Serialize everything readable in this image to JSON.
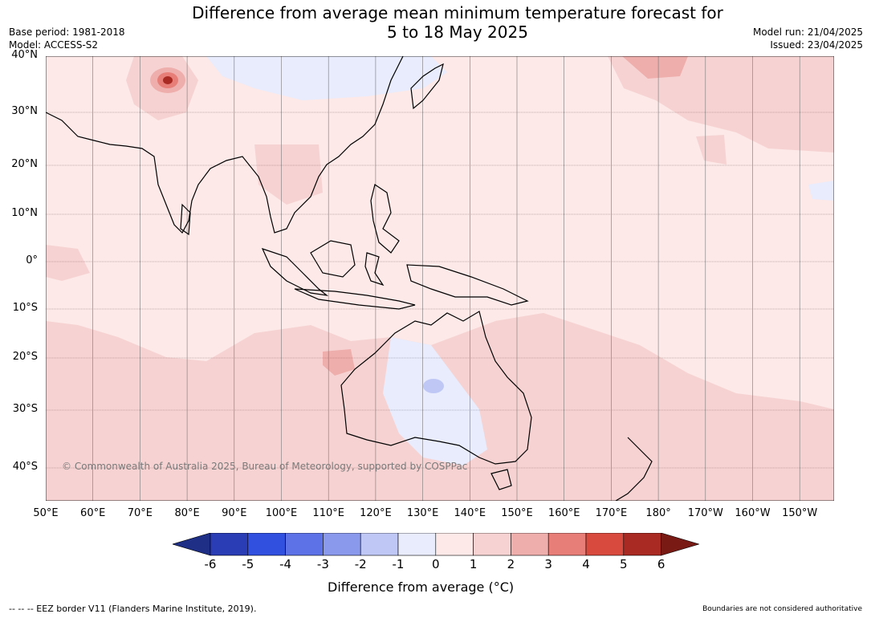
{
  "title_line1": "Difference from average mean minimum temperature forecast for",
  "title_line2": "5 to 18 May 2025",
  "base_period": "Base period: 1981-2018",
  "model": "Model: ACCESS-S2",
  "model_run": "Model run: 21/04/2025",
  "issued": "Issued: 23/04/2025",
  "lat_labels": [
    "40°N",
    "30°N",
    "20°N",
    "10°N",
    "0°",
    "10°S",
    "20°S",
    "30°S",
    "40°S"
  ],
  "lon_labels": [
    "50°E",
    "60°E",
    "70°E",
    "80°E",
    "90°E",
    "100°E",
    "110°E",
    "120°E",
    "130°E",
    "140°E",
    "150°E",
    "160°E",
    "170°E",
    "180°",
    "170°W",
    "160°W",
    "150°W"
  ],
  "copyright": "© Commonwealth of Australia 2025, Bureau of Meteorology, supported by COSPPac",
  "colorbar": {
    "label": "Difference from average (°C)",
    "ticks": [
      "-6",
      "-5",
      "-4",
      "-3",
      "-2",
      "-1",
      "0",
      "1",
      "2",
      "3",
      "4",
      "5",
      "6"
    ],
    "colors": [
      "#1f2f86",
      "#2a3db4",
      "#3250e0",
      "#5d72e6",
      "#8a99ec",
      "#bfc7f4",
      "#e8ecfc",
      "#fce9e8",
      "#f6d3d2",
      "#eeaeac",
      "#e77e78",
      "#d84a3e",
      "#a82a22",
      "#7a1a15"
    ]
  },
  "footer_left": "--  --  -- EEZ border V11 (Flanders Marine Institute, 2019).",
  "footer_right": "Boundaries are not considered authoritative"
}
